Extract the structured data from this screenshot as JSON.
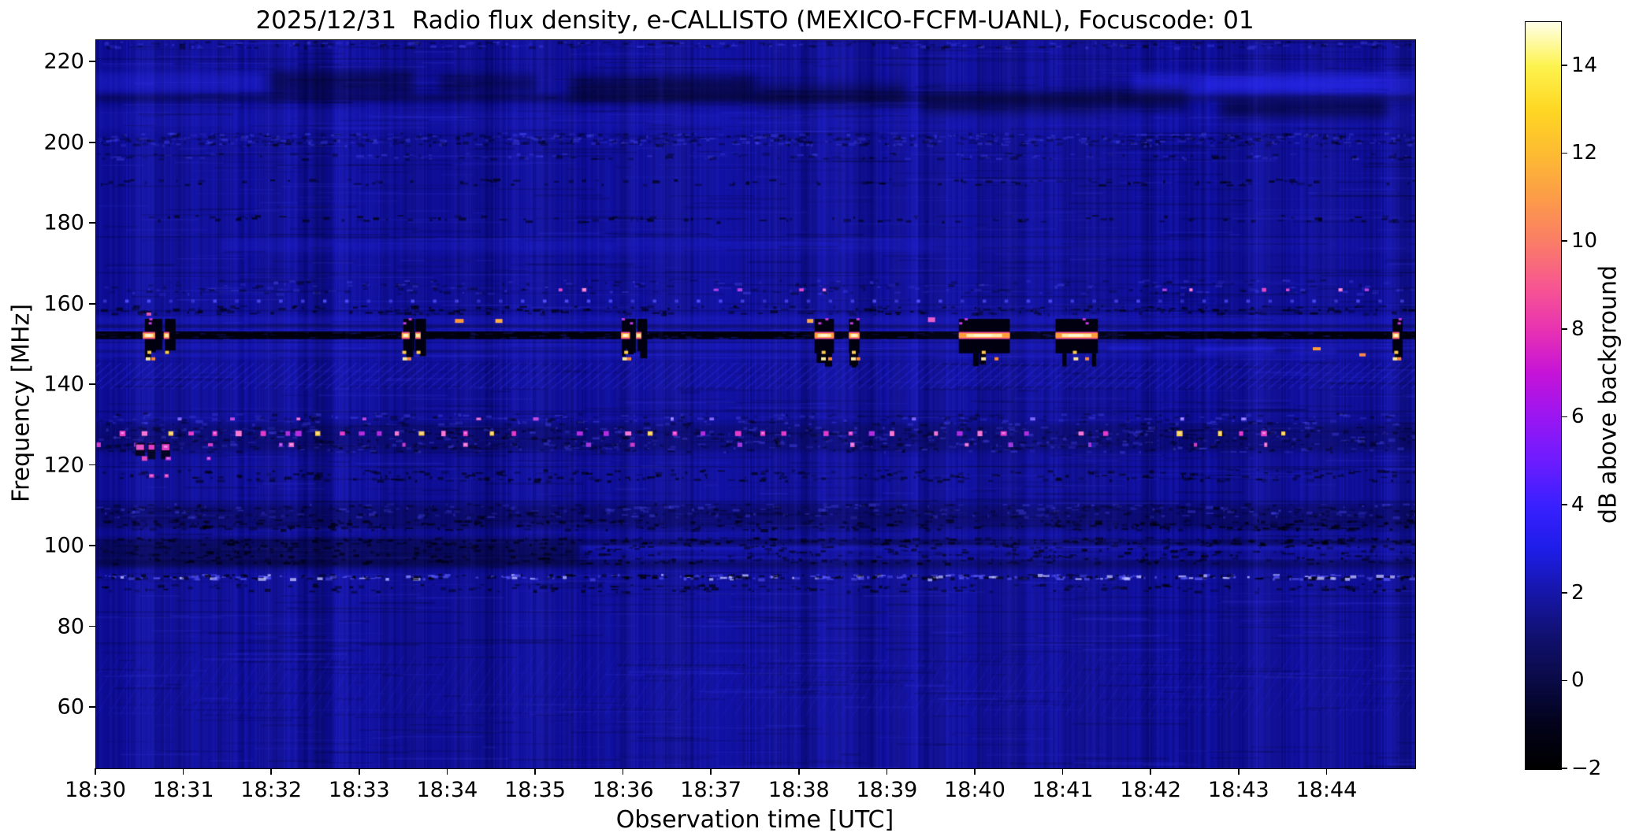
{
  "chart_data": {
    "type": "heatmap",
    "title": "2025/12/31  Radio flux density, e-CALLISTO (MEXICO-FCFM-UANL), Focuscode: 01",
    "date": "2025/12/31",
    "station": "MEXICO-FCFM-UANL",
    "focuscode": "01",
    "xlabel": "Observation time [UTC]",
    "ylabel": "Frequency [MHz]",
    "colorbar_label": "dB above background",
    "x_ticks": [
      "18:30",
      "18:31",
      "18:32",
      "18:33",
      "18:34",
      "18:35",
      "18:36",
      "18:37",
      "18:38",
      "18:39",
      "18:40",
      "18:41",
      "18:42",
      "18:43",
      "18:44"
    ],
    "x_tick_minutes": [
      0,
      1,
      2,
      3,
      4,
      5,
      6,
      7,
      8,
      9,
      10,
      11,
      12,
      13,
      14
    ],
    "x_range_minutes": [
      0,
      15
    ],
    "y_ticks": [
      220,
      200,
      180,
      160,
      140,
      120,
      100,
      80,
      60
    ],
    "y_range_mhz": [
      45.0,
      225.5
    ],
    "colorbar_ticks": [
      "14",
      "12",
      "10",
      "8",
      "6",
      "4",
      "2",
      "0",
      "−2"
    ],
    "colorbar_tick_values": [
      14,
      12,
      10,
      8,
      6,
      4,
      2,
      0,
      -2
    ],
    "colorbar_range_db": [
      -2,
      15
    ],
    "grid": false,
    "colormap": {
      "name": "gnuplot2-like",
      "stops": [
        {
          "v": -2,
          "c": "#000000"
        },
        {
          "v": -1,
          "c": "#02021a"
        },
        {
          "v": 0,
          "c": "#0a0a46"
        },
        {
          "v": 1,
          "c": "#10106e"
        },
        {
          "v": 2,
          "c": "#1616a8"
        },
        {
          "v": 3,
          "c": "#1d1de8"
        },
        {
          "v": 4,
          "c": "#3920ff"
        },
        {
          "v": 5,
          "c": "#6c1cff"
        },
        {
          "v": 6,
          "c": "#9a16f2"
        },
        {
          "v": 7,
          "c": "#c513d8"
        },
        {
          "v": 8,
          "c": "#e832b2"
        },
        {
          "v": 9,
          "c": "#f75790"
        },
        {
          "v": 10,
          "c": "#fa7d66"
        },
        {
          "v": 11,
          "c": "#fc9c48"
        },
        {
          "v": 12,
          "c": "#fdbb32"
        },
        {
          "v": 13,
          "c": "#fed723"
        },
        {
          "v": 14,
          "c": "#fdf34e"
        },
        {
          "v": 15,
          "c": "#ffffe8"
        }
      ]
    },
    "background_level_db": 1.7,
    "features": {
      "base_color": "#0e0e9c",
      "smooth": [
        {
          "f": [
            217.5,
            212.5
          ],
          "t": [
            0,
            1.9
          ],
          "c": "lite",
          "a": 0.3,
          "blur": 5
        },
        {
          "f": [
            217.0,
            210.5
          ],
          "t": [
            11.8,
            15
          ],
          "c": "lite",
          "a": 0.45,
          "blur": 6
        },
        {
          "f": [
            216.5,
            213.0
          ],
          "t": [
            12.6,
            14.6
          ],
          "c": "lite",
          "a": 0.35,
          "blur": 5
        },
        {
          "f": [
            208.5,
            203.0
          ],
          "t": [
            0,
            15
          ],
          "c": "lite",
          "a": 0.13,
          "blur": 4
        },
        {
          "f": [
            212.0,
            210.3
          ],
          "t": [
            0,
            15
          ],
          "c": "dark",
          "a": 0.35,
          "blur": 3
        },
        {
          "f": [
            218.0,
            212.0
          ],
          "t": [
            2.0,
            3.6
          ],
          "c": "dark",
          "a": 0.4,
          "blur": 6
        },
        {
          "f": [
            217.0,
            212.5
          ],
          "t": [
            3.9,
            5.0
          ],
          "c": "dark",
          "a": 0.35,
          "blur": 6
        },
        {
          "f": [
            216.5,
            210.5
          ],
          "t": [
            5.4,
            7.5
          ],
          "c": "dark",
          "a": 0.5,
          "blur": 7
        },
        {
          "f": [
            214.5,
            209.5
          ],
          "t": [
            7.5,
            9.2
          ],
          "c": "dark",
          "a": 0.4,
          "blur": 7
        },
        {
          "f": [
            212.5,
            207.5
          ],
          "t": [
            9.4,
            11.4
          ],
          "c": "dark",
          "a": 0.45,
          "blur": 7
        },
        {
          "f": [
            213.5,
            208.0
          ],
          "t": [
            11.4,
            12.4
          ],
          "c": "dark",
          "a": 0.4,
          "blur": 6
        },
        {
          "f": [
            210.5,
            206.5
          ],
          "t": [
            12.8,
            14.7
          ],
          "c": "dark",
          "a": 0.5,
          "blur": 7
        },
        {
          "f": [
            176.5,
            172.8
          ],
          "t": [
            1.4,
            9.6
          ],
          "c": "lite",
          "a": 0.18,
          "blur": 3
        },
        {
          "f": [
            176.5,
            172.8
          ],
          "t": [
            9.6,
            15
          ],
          "c": "lite",
          "a": 0.08,
          "blur": 3
        },
        {
          "f": [
            157.2,
            153.3
          ],
          "t": [
            0,
            15
          ],
          "c": "lite",
          "a": 0.22,
          "blur": 2
        },
        {
          "f": [
            153.7,
            153.15
          ],
          "t": [
            0,
            15
          ],
          "c": "lite",
          "a": 0.28,
          "blur": 1
        },
        {
          "f": [
            151.4,
            146.6
          ],
          "t": [
            0,
            15
          ],
          "c": "lite",
          "a": 0.2,
          "blur": 2
        },
        {
          "f": [
            155.0,
            154.2
          ],
          "t": [
            0,
            15
          ],
          "c": "dark",
          "a": 0.35,
          "blur": 1
        },
        {
          "f": [
            148.6,
            148.1
          ],
          "t": [
            0,
            15
          ],
          "c": "dark",
          "a": 0.3,
          "blur": 1
        },
        {
          "f": [
            130.5,
            123.5
          ],
          "t": [
            0,
            15
          ],
          "c": "dark",
          "a": 0.22,
          "blur": 3
        },
        {
          "f": [
            110.5,
            104.5
          ],
          "t": [
            0,
            15
          ],
          "c": "dark",
          "a": 0.28,
          "blur": 3
        },
        {
          "f": [
            100.3,
            99.2
          ],
          "t": [
            5.5,
            15
          ],
          "c": "lite",
          "a": 0.35,
          "blur": 2
        },
        {
          "f": [
            97.3,
            96.9
          ],
          "t": [
            0,
            15
          ],
          "c": "lite",
          "a": 0.25,
          "blur": 1
        },
        {
          "f": [
            102.0,
            95.5
          ],
          "t": [
            0,
            5.5
          ],
          "c": "dark",
          "a": 0.4,
          "blur": 4
        },
        {
          "f": [
            101.5,
            100.3
          ],
          "t": [
            5.5,
            15
          ],
          "c": "dark",
          "a": 0.35,
          "blur": 2
        },
        {
          "f": [
            96.5,
            94.8
          ],
          "t": [
            0,
            15
          ],
          "c": "dark",
          "a": 0.35,
          "blur": 3
        },
        {
          "f": [
            149.5,
            148.8
          ],
          "t": [
            11.5,
            12.0
          ],
          "c": "lite",
          "a": 0.5,
          "blur": 2
        },
        {
          "f": [
            149.3,
            148.3
          ],
          "t": [
            12.5,
            13.4
          ],
          "c": "lite",
          "a": 0.5,
          "blur": 2
        },
        {
          "f": [
            148.8,
            147.9
          ],
          "t": [
            13.6,
            14.1
          ],
          "c": "lite",
          "a": 0.3,
          "blur": 2
        }
      ],
      "hatch": [
        {
          "f": [
            145.5,
            139.0
          ],
          "spacing": 13,
          "dx": 40,
          "a": 0.26
        },
        {
          "f": [
            73.0,
            58.0
          ],
          "spacing": 15,
          "dx": 46,
          "a": 0.12
        }
      ],
      "speckle": [
        {
          "f": [
            225.3,
            223.8
          ],
          "n": 260,
          "kind": "mix"
        },
        {
          "f": [
            202.6,
            199.6
          ],
          "n": 700,
          "kind": "mix"
        },
        {
          "f": [
            197.6,
            196.2
          ],
          "n": 150,
          "kind": "mix"
        },
        {
          "f": [
            191.2,
            189.8
          ],
          "n": 110,
          "kind": "dark"
        },
        {
          "f": [
            182.2,
            180.6
          ],
          "n": 110,
          "kind": "dark"
        },
        {
          "f": [
            166.2,
            162.8
          ],
          "n": 260,
          "kind": "mix"
        },
        {
          "f": [
            159.8,
            157.8
          ],
          "n": 260,
          "kind": "dark"
        },
        {
          "f": [
            133.2,
            130.3
          ],
          "n": 300,
          "kind": "mix"
        },
        {
          "f": [
            129.8,
            123.6
          ],
          "n": 800,
          "kind": "mix"
        },
        {
          "f": [
            119.2,
            116.4
          ],
          "n": 280,
          "kind": "dark"
        },
        {
          "f": [
            110.8,
            107.4
          ],
          "n": 500,
          "kind": "mix"
        },
        {
          "f": [
            106.8,
            104.3
          ],
          "n": 350,
          "kind": "dark"
        },
        {
          "f": [
            102.3,
            100.8
          ],
          "n": 250,
          "kind": "dark"
        },
        {
          "f": [
            100.8,
            95.9
          ],
          "n": 450,
          "kind": "dark"
        },
        {
          "f": [
            93.2,
            92.1
          ],
          "n": 420,
          "kind": "mixbright"
        },
        {
          "f": [
            90.8,
            88.9
          ],
          "n": 180,
          "kind": "dark"
        }
      ],
      "thin_dark_lines": [
        221.0,
        176.9,
        168.0,
        158.6,
        150.7,
        133.6,
        119.9,
        111.3,
        101.7,
        83.9,
        76.2
      ],
      "black_band": {
        "f": [
          153.3,
          151.4
        ],
        "gaps": 170
      },
      "periodic_dots": {
        "f": 161.2,
        "start": 0.08,
        "end": 14.9,
        "step": 0.25
      },
      "dot_rows": [
        {
          "f": 128.0,
          "w": 5,
          "h": 5,
          "colors": [
            "#e83cc8",
            "#b22ee0",
            "#ff7ad2",
            "#e83cc8",
            "#ffd24e"
          ],
          "times": [
            0.3,
            0.55,
            0.85,
            1.08,
            1.35,
            1.62,
            1.9,
            2.18,
            2.3,
            2.52,
            2.8,
            3.02,
            3.22,
            3.42,
            3.7,
            3.95,
            4.2,
            4.5,
            4.75,
            5.5,
            5.8,
            6.05,
            6.3,
            6.58,
            6.9,
            7.3,
            7.58,
            7.82,
            8.3,
            8.58,
            8.82,
            9.05,
            9.55,
            9.82,
            10.05,
            10.32,
            10.58,
            11.2,
            11.48,
            12.32,
            12.78,
            13.02,
            13.28,
            13.5
          ]
        },
        {
          "f": 125.2,
          "w": 4,
          "h": 4,
          "colors": [
            "#d23cc8",
            "#a03ae0",
            "#f06ad2"
          ],
          "times": [
            0.03,
            0.45,
            0.62,
            1.3,
            2.1,
            2.22,
            3.5,
            4.2,
            5.6,
            6.1,
            7.32,
            8.6,
            9.9,
            10.4,
            11.3,
            12.5,
            13.3
          ]
        },
        {
          "f": 124.6,
          "w": 7,
          "h": 6,
          "bar": 16,
          "colors": [
            "#f056c8",
            "#e83cc8"
          ],
          "times": [
            0.5,
            0.63,
            0.79
          ]
        },
        {
          "f": 121.8,
          "w": 4,
          "h": 4,
          "colors": [
            "#e84ac0",
            "#c83ae0"
          ],
          "times": [
            0.55,
            0.82,
            1.28
          ]
        },
        {
          "f": 117.5,
          "w": 5,
          "h": 4,
          "colors": [
            "#f05ac8",
            "#e040c0"
          ],
          "times": [
            0.63,
            0.8
          ]
        },
        {
          "f": 131.6,
          "w": 4,
          "h": 3,
          "colors": [
            "#c04ae0",
            "#8468ff",
            "#e060d0"
          ],
          "times": [
            0.95,
            1.55,
            2.3,
            3.05,
            4.35,
            5.0,
            6.55,
            7.0,
            9.3,
            10.65,
            12.35,
            13.05
          ]
        },
        {
          "f": 163.6,
          "w": 4,
          "h": 3,
          "colors": [
            "#e048c8",
            "#b040e8",
            "#f070d0"
          ],
          "times": [
            5.28,
            5.55,
            7.05,
            7.32,
            8.02,
            8.28,
            12.15,
            12.45,
            13.28,
            13.55,
            14.15,
            14.45
          ]
        }
      ],
      "blobs": [
        {
          "t": 4.13,
          "f": 155.9,
          "c": "#ff9a3c",
          "w": 11,
          "h": 5
        },
        {
          "t": 4.58,
          "f": 155.9,
          "c": "#ffae46",
          "w": 9,
          "h": 5
        },
        {
          "t": 8.12,
          "f": 155.9,
          "c": "#ffae46",
          "w": 8,
          "h": 5
        },
        {
          "t": 9.5,
          "f": 156.2,
          "c": "#f060c8",
          "w": 9,
          "h": 6
        },
        {
          "t": 13.88,
          "f": 149.0,
          "c": "#ff9a3c",
          "w": 10,
          "h": 4
        },
        {
          "t": 14.4,
          "f": 147.5,
          "c": "#ff8a50",
          "w": 8,
          "h": 4
        },
        {
          "t": 0.6,
          "f": 157.6,
          "c": "#e85ab0",
          "w": 6,
          "h": 4
        }
      ],
      "events": [
        {
          "t": 0.6,
          "w": 0.14,
          "s": 1.0,
          "block": false
        },
        {
          "t": 0.8,
          "w": 0.06,
          "s": 0.7,
          "block": false
        },
        {
          "t": 3.52,
          "w": 0.09,
          "s": 0.9,
          "block": false
        },
        {
          "t": 3.66,
          "w": 0.05,
          "s": 0.7,
          "block": false
        },
        {
          "t": 6.02,
          "w": 0.1,
          "s": 0.95,
          "block": false
        },
        {
          "t": 6.17,
          "w": 0.04,
          "s": 0.5,
          "block": false
        },
        {
          "t": 8.28,
          "w": 0.22,
          "s": 0.85,
          "block": true
        },
        {
          "t": 8.62,
          "w": 0.12,
          "s": 0.8,
          "block": true
        },
        {
          "t": 10.1,
          "w": 0.58,
          "s": 1.0,
          "block": true
        },
        {
          "t": 11.15,
          "w": 0.48,
          "s": 0.95,
          "block": true
        },
        {
          "t": 14.78,
          "w": 0.08,
          "s": 0.8,
          "block": false
        }
      ],
      "streaks": [
        {
          "t": 1.95,
          "wpx": 4,
          "a": 0.06
        },
        {
          "t": 2.85,
          "wpx": 4,
          "a": 0.05
        },
        {
          "t": 4.28,
          "wpx": 6,
          "a": 0.1
        },
        {
          "t": 5.32,
          "wpx": 5,
          "a": 0.08
        },
        {
          "t": 6.42,
          "wpx": 6,
          "a": 0.1
        },
        {
          "t": 7.95,
          "wpx": 4,
          "a": 0.07
        },
        {
          "t": 9.32,
          "wpx": 5,
          "a": 0.08
        },
        {
          "t": 11.58,
          "wpx": 7,
          "a": 0.1
        },
        {
          "t": 12.62,
          "wpx": 5,
          "a": 0.07
        },
        {
          "t": 13.18,
          "wpx": 6,
          "a": 0.09
        }
      ]
    }
  }
}
